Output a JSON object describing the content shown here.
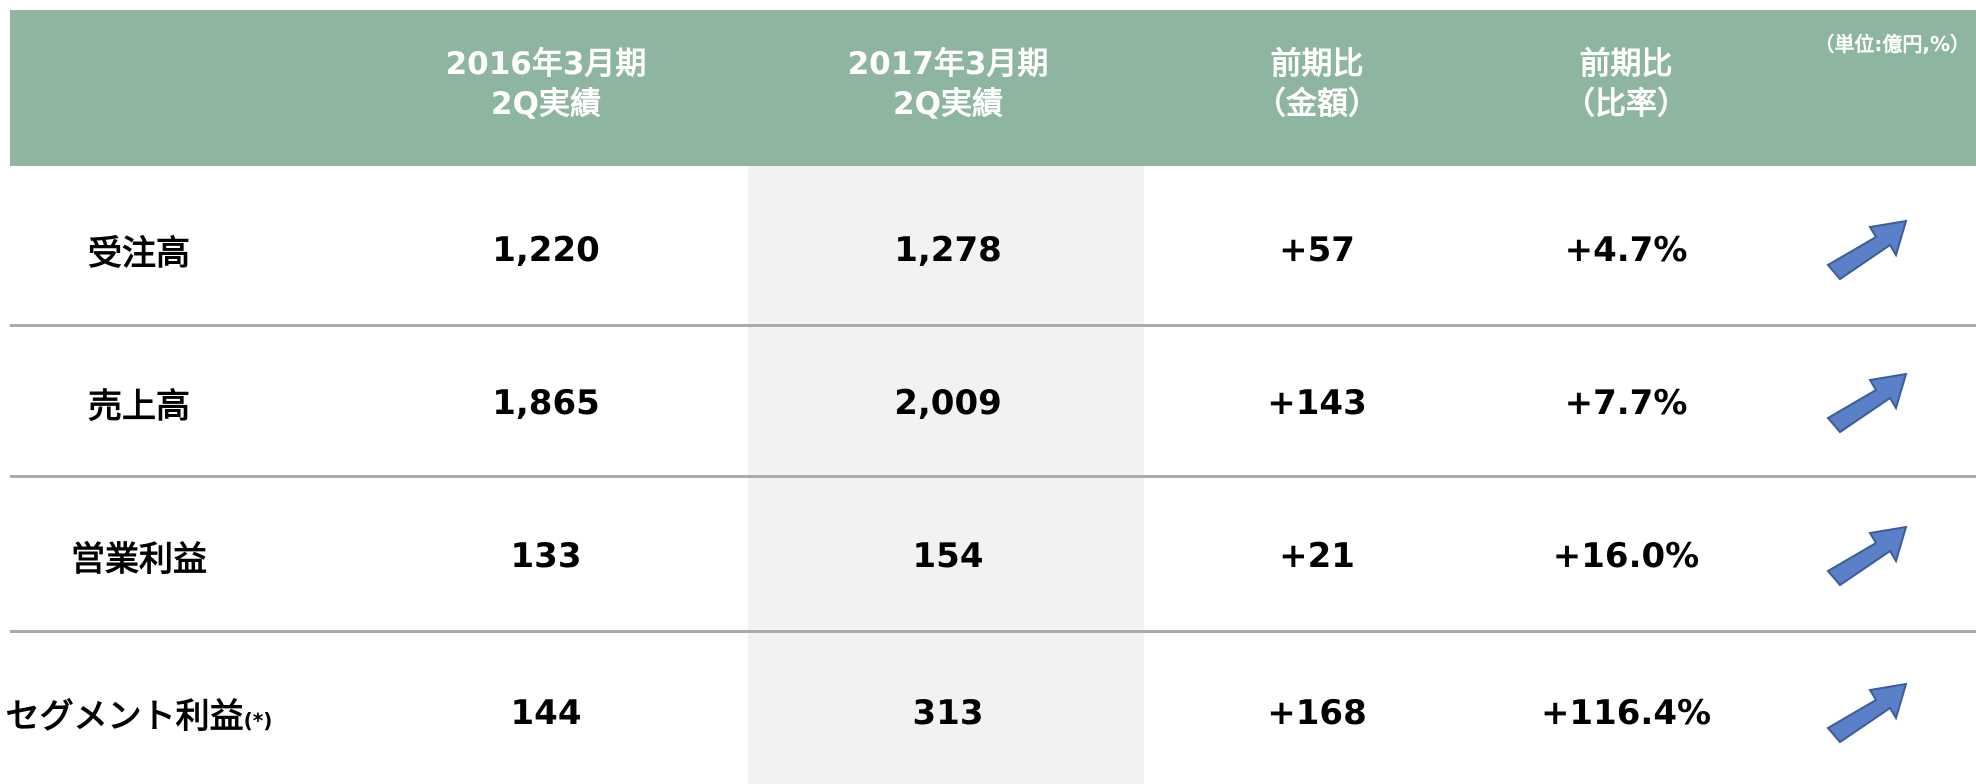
{
  "header": {
    "unit": "（単位:億円,%）",
    "columns": [
      [
        "2016年3月期",
        "2Q実績"
      ],
      [
        "2017年3月期",
        "2Q実績"
      ],
      [
        "前期比",
        "（金額）"
      ],
      [
        "前期比",
        "（比率）"
      ]
    ]
  },
  "table": {
    "rows": [
      {
        "label": "受注高",
        "cells": [
          "1,220",
          "1,278",
          "+57",
          "+4.7%"
        ]
      },
      {
        "label": "売上高",
        "cells": [
          "1,865",
          "2,009",
          "+143",
          "+7.7%"
        ]
      },
      {
        "label": "営業利益",
        "cells": [
          "133",
          "154",
          "+21",
          "+16.0%"
        ]
      },
      {
        "label": "セグメント利益",
        "note": "(*)",
        "cells": [
          "144",
          "313",
          "+168",
          "+116.4%"
        ]
      }
    ]
  }
}
